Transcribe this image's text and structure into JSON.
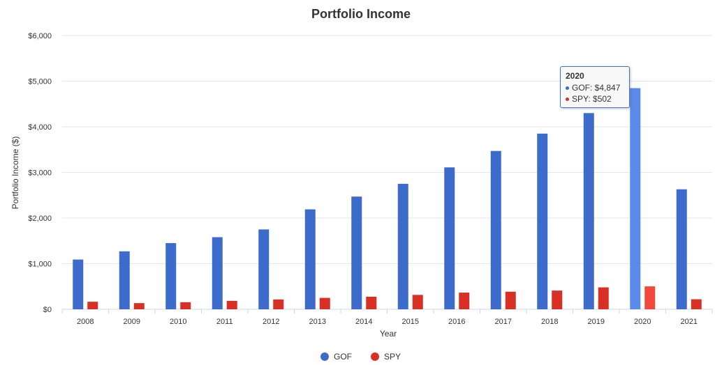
{
  "chart_data": {
    "type": "bar",
    "title": "Portfolio Income",
    "xlabel": "Year",
    "ylabel": "Portfolio Income ($)",
    "ylim": [
      0,
      6000
    ],
    "yticks": [
      "$0",
      "$1,000",
      "$2,000",
      "$3,000",
      "$4,000",
      "$5,000",
      "$6,000"
    ],
    "grid": true,
    "legend_position": "bottom-center",
    "categories": [
      "2008",
      "2009",
      "2010",
      "2011",
      "2012",
      "2013",
      "2014",
      "2015",
      "2016",
      "2017",
      "2018",
      "2019",
      "2020",
      "2021"
    ],
    "series": [
      {
        "name": "GOF",
        "color": "#3d6bcc",
        "values": [
          1090,
          1270,
          1450,
          1580,
          1750,
          2190,
          2470,
          2750,
          3110,
          3470,
          3850,
          4300,
          4847,
          2630
        ]
      },
      {
        "name": "SPY",
        "color": "#d93025",
        "values": [
          165,
          135,
          155,
          185,
          215,
          250,
          275,
          315,
          365,
          385,
          410,
          480,
          502,
          220
        ]
      }
    ],
    "highlight": {
      "category": "2020",
      "colors": [
        "#5b8aea",
        "#f0483c"
      ]
    },
    "tooltip": {
      "title": "2020",
      "rows": [
        "GOF: $4,847",
        "SPY: $502"
      ]
    }
  }
}
